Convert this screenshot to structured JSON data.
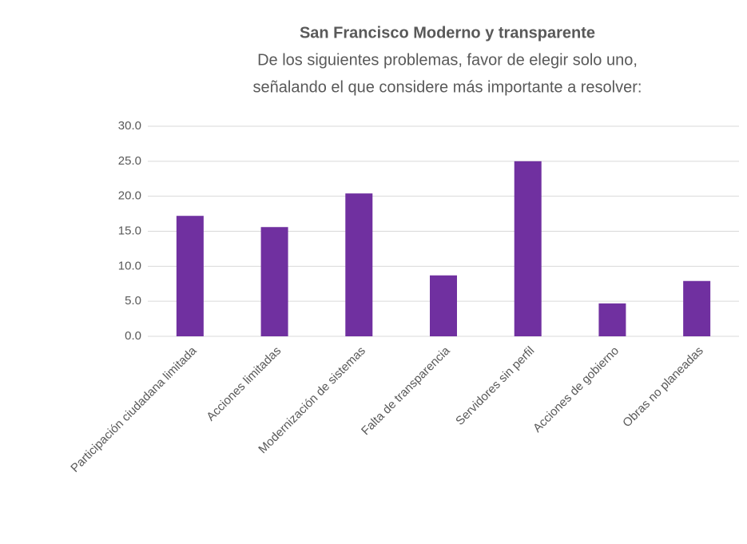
{
  "chart_data": {
    "type": "bar",
    "title": "San Francisco Moderno y transparente",
    "subtitle": [
      "De los siguientes problemas, favor de elegir solo uno,",
      "señalando el que considere más importante a resolver:"
    ],
    "categories": [
      "Participación ciudadana limitada",
      "Acciones limitadas",
      "Modernización de sistemas",
      "Falta de transparencia",
      "Servidores sin perfil",
      "Acciones de gobierno",
      "Obras no planeadas"
    ],
    "values": [
      17.2,
      15.6,
      20.4,
      8.7,
      25.0,
      4.7,
      7.9
    ],
    "color": "#7030a0",
    "ylim": [
      0,
      30
    ],
    "yticks": [
      {
        "value": 0,
        "label": "0.0"
      },
      {
        "value": 5,
        "label": "5.0"
      },
      {
        "value": 10,
        "label": "10.0"
      },
      {
        "value": 15,
        "label": "15.0"
      },
      {
        "value": 20,
        "label": "20.0"
      },
      {
        "value": 25,
        "label": "25.0"
      },
      {
        "value": 30,
        "label": "30.0"
      }
    ],
    "grid": true
  }
}
